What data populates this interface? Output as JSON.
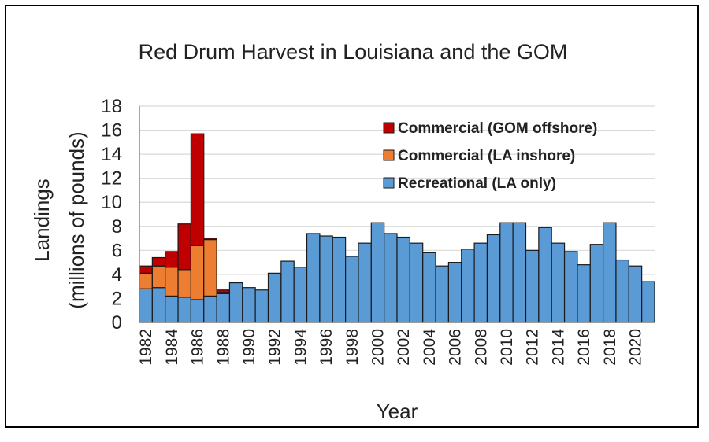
{
  "chart_data": {
    "type": "bar",
    "stacked": true,
    "title": "Red Drum Harvest in Louisiana and the GOM",
    "xlabel": "Year",
    "ylabel_lines": [
      "Landings",
      "(millions of pounds)"
    ],
    "ylim": [
      0,
      18
    ],
    "yticks": [
      0,
      2,
      4,
      6,
      8,
      10,
      12,
      14,
      16,
      18
    ],
    "grid": true,
    "legend_position": "top-right",
    "categories": [
      1982,
      1983,
      1984,
      1985,
      1986,
      1987,
      1988,
      1989,
      1990,
      1991,
      1992,
      1993,
      1994,
      1995,
      1996,
      1997,
      1998,
      1999,
      2000,
      2001,
      2002,
      2003,
      2004,
      2005,
      2006,
      2007,
      2008,
      2009,
      2010,
      2011,
      2012,
      2013,
      2014,
      2015,
      2016,
      2017,
      2018,
      2019,
      2020,
      2021
    ],
    "x_tick_labels": [
      "1982",
      "1984",
      "1986",
      "1988",
      "1990",
      "1992",
      "1994",
      "1996",
      "1998",
      "2000",
      "2002",
      "2004",
      "2006",
      "2008",
      "2010",
      "2012",
      "2014",
      "2016",
      "2018",
      "2020"
    ],
    "series": [
      {
        "name": "Recreational (LA only)",
        "color": "#5b9bd5",
        "values": [
          2.8,
          2.9,
          2.2,
          2.1,
          1.9,
          2.2,
          2.4,
          3.3,
          2.9,
          2.7,
          4.1,
          5.1,
          4.6,
          7.4,
          7.2,
          7.1,
          5.5,
          6.6,
          8.3,
          7.4,
          7.1,
          6.6,
          5.8,
          4.7,
          5.0,
          6.1,
          6.6,
          7.3,
          8.3,
          8.3,
          6.0,
          7.9,
          6.6,
          5.9,
          4.8,
          6.5,
          8.3,
          5.2,
          4.7,
          3.4
        ]
      },
      {
        "name": "Commercial (LA inshore)",
        "color": "#ed7d31",
        "values": [
          1.3,
          1.8,
          2.4,
          2.3,
          4.5,
          4.7,
          0.1,
          0,
          0,
          0,
          0,
          0,
          0,
          0,
          0,
          0,
          0,
          0,
          0,
          0,
          0,
          0,
          0,
          0,
          0,
          0,
          0,
          0,
          0,
          0,
          0,
          0,
          0,
          0,
          0,
          0,
          0,
          0,
          0,
          0
        ]
      },
      {
        "name": "Commercial (GOM offshore)",
        "color": "#c00000",
        "values": [
          0.6,
          0.7,
          1.3,
          3.8,
          9.3,
          0.1,
          0.2,
          0,
          0,
          0,
          0,
          0,
          0,
          0,
          0,
          0,
          0,
          0,
          0,
          0,
          0,
          0,
          0,
          0,
          0,
          0,
          0,
          0,
          0,
          0,
          0,
          0,
          0,
          0,
          0,
          0,
          0,
          0,
          0,
          0
        ]
      }
    ],
    "legend_order": [
      "Commercial (GOM offshore)",
      "Commercial (LA inshore)",
      "Recreational (LA only)"
    ]
  }
}
